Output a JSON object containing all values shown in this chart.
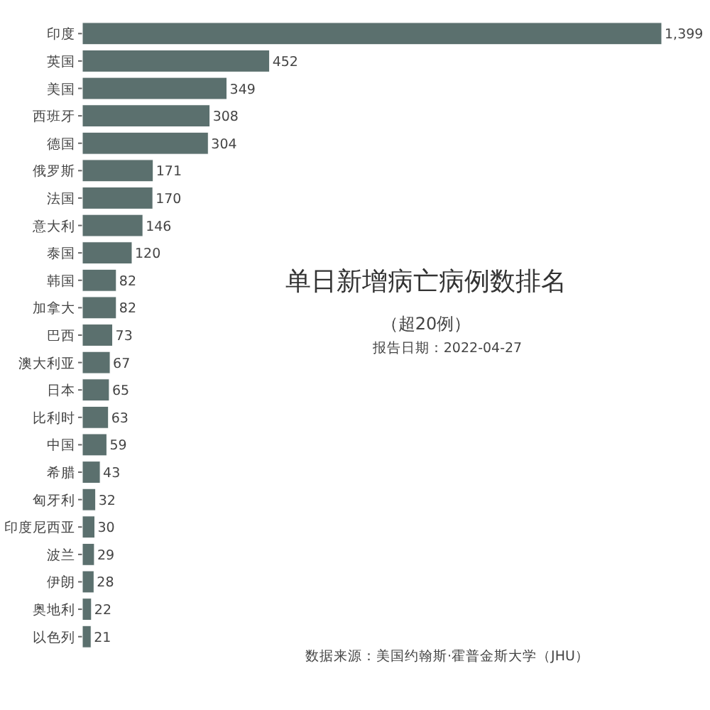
{
  "chart_data": {
    "type": "bar",
    "orientation": "horizontal",
    "title": "单日新增病亡病例数排名",
    "subtitle": "（超20例）",
    "annotations": [
      "报告日期：2022-04-27",
      "数据来源：美国约翰斯·霍普金斯大学（JHU）"
    ],
    "categories": [
      "印度",
      "英国",
      "美国",
      "西班牙",
      "德国",
      "俄罗斯",
      "法国",
      "意大利",
      "泰国",
      "韩国",
      "加拿大",
      "巴西",
      "澳大利亚",
      "日本",
      "比利时",
      "中国",
      "希腊",
      "匈牙利",
      "印度尼西亚",
      "波兰",
      "伊朗",
      "奥地利",
      "以色列"
    ],
    "values": [
      1399,
      452,
      349,
      308,
      304,
      171,
      170,
      146,
      120,
      82,
      82,
      73,
      67,
      65,
      63,
      59,
      43,
      32,
      30,
      29,
      28,
      22,
      21
    ],
    "value_labels": [
      "1,399",
      "452",
      "349",
      "308",
      "304",
      "171",
      "170",
      "146",
      "120",
      "82",
      "82",
      "73",
      "67",
      "65",
      "63",
      "59",
      "43",
      "32",
      "30",
      "29",
      "28",
      "22",
      "21"
    ],
    "color": "#5b706e"
  }
}
